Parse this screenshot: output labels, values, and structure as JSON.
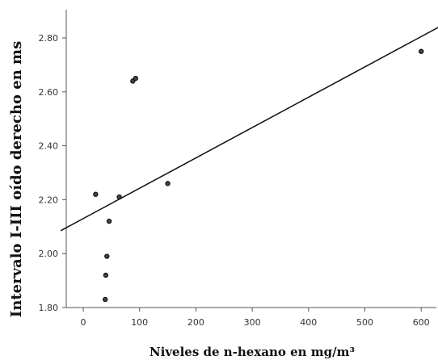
{
  "chart_data": {
    "type": "scatter",
    "xlabel": "Niveles de n-hexano en mg/m³",
    "ylabel": "Intervalo I-III oído derecho en ms",
    "xlim": [
      -40,
      640
    ],
    "ylim": [
      1.8,
      2.9
    ],
    "xticks": [
      0,
      100,
      200,
      300,
      400,
      500,
      600
    ],
    "xtick_labels": [
      "0",
      "100",
      "200",
      "300",
      "400",
      "500",
      "600"
    ],
    "yticks": [
      1.8,
      2.0,
      2.2,
      2.4,
      2.6,
      2.8
    ],
    "ytick_labels": [
      "1.80",
      "2.00",
      "2.20",
      "2.40",
      "2.60",
      "2.80"
    ],
    "points": [
      {
        "x": 22,
        "y": 2.22
      },
      {
        "x": 88,
        "y": 2.64
      },
      {
        "x": 93,
        "y": 2.65
      },
      {
        "x": 64,
        "y": 2.21
      },
      {
        "x": 46,
        "y": 2.12
      },
      {
        "x": 150,
        "y": 2.26
      },
      {
        "x": 600,
        "y": 2.75
      },
      {
        "x": 42,
        "y": 1.99
      },
      {
        "x": 40,
        "y": 1.92
      },
      {
        "x": 39,
        "y": 1.83
      }
    ],
    "fit_line": {
      "x": [
        -40,
        640
      ],
      "y": [
        2.085,
        2.85
      ]
    },
    "grid": false,
    "legend": "none"
  }
}
